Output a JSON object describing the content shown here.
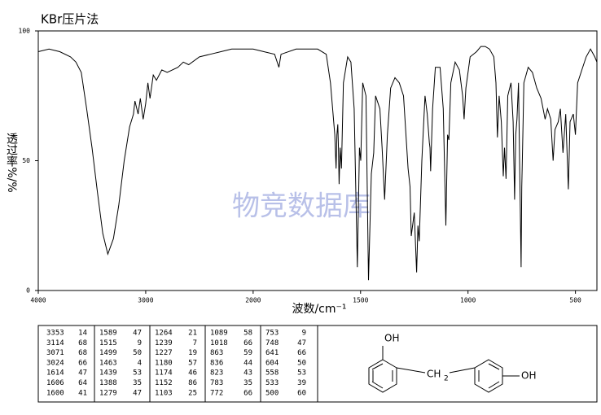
{
  "chart_data": {
    "type": "line",
    "title": "KBr压片法",
    "x_label": "波数/cm⁻¹",
    "y_label": "透过率%/%",
    "annotation": "物竞数据库",
    "xlim": [
      4000,
      400
    ],
    "xticks": [
      4000,
      3000,
      2000,
      1500,
      1000,
      500
    ],
    "ylim": [
      0,
      100
    ],
    "yticks": [
      0,
      50,
      100
    ],
    "color": "#000000",
    "x": [
      4000,
      3900,
      3800,
      3700,
      3650,
      3600,
      3550,
      3500,
      3450,
      3400,
      3353,
      3300,
      3250,
      3200,
      3150,
      3114,
      3100,
      3071,
      3050,
      3024,
      3000,
      2980,
      2960,
      2930,
      2900,
      2850,
      2800,
      2700,
      2650,
      2600,
      2500,
      2400,
      2300,
      2200,
      2100,
      2000,
      1950,
      1900,
      1880,
      1870,
      1800,
      1750,
      1700,
      1660,
      1640,
      1620,
      1614,
      1610,
      1606,
      1603,
      1600,
      1595,
      1589,
      1580,
      1560,
      1545,
      1530,
      1515,
      1505,
      1499,
      1490,
      1475,
      1463,
      1450,
      1439,
      1430,
      1410,
      1400,
      1388,
      1375,
      1360,
      1340,
      1320,
      1300,
      1279,
      1270,
      1264,
      1250,
      1239,
      1233,
      1227,
      1215,
      1200,
      1190,
      1180,
      1177,
      1174,
      1165,
      1152,
      1130,
      1115,
      1103,
      1095,
      1089,
      1080,
      1060,
      1040,
      1025,
      1018,
      1010,
      990,
      960,
      940,
      920,
      900,
      880,
      870,
      863,
      855,
      845,
      836,
      830,
      823,
      815,
      800,
      790,
      783,
      778,
      772,
      765,
      758,
      753,
      750,
      748,
      740,
      720,
      700,
      680,
      660,
      641,
      630,
      615,
      604,
      595,
      580,
      570,
      558,
      545,
      533,
      525,
      510,
      500,
      490,
      470,
      450,
      430,
      410,
      400
    ],
    "values": [
      92,
      93,
      92,
      90,
      88,
      84,
      70,
      55,
      38,
      22,
      14,
      20,
      33,
      50,
      63,
      68,
      73,
      68,
      74,
      66,
      72,
      80,
      74,
      83,
      81,
      85,
      84,
      86,
      88,
      87,
      90,
      91,
      92,
      93,
      93,
      93,
      92,
      91,
      86,
      91,
      93,
      93,
      93,
      91,
      80,
      60,
      47,
      60,
      64,
      55,
      41,
      55,
      47,
      80,
      90,
      88,
      70,
      9,
      55,
      50,
      80,
      75,
      4,
      45,
      53,
      75,
      70,
      55,
      35,
      60,
      78,
      82,
      80,
      75,
      47,
      40,
      21,
      30,
      7,
      25,
      19,
      50,
      75,
      68,
      57,
      55,
      46,
      70,
      86,
      86,
      70,
      25,
      60,
      58,
      80,
      88,
      85,
      75,
      66,
      78,
      90,
      92,
      94,
      94,
      93,
      90,
      80,
      59,
      75,
      65,
      44,
      55,
      43,
      75,
      80,
      65,
      35,
      60,
      66,
      80,
      40,
      9,
      40,
      47,
      80,
      86,
      84,
      78,
      74,
      66,
      70,
      66,
      50,
      62,
      65,
      70,
      53,
      68,
      39,
      65,
      68,
      60,
      80,
      85,
      90,
      93,
      90,
      88
    ]
  },
  "peak_table": [
    [
      [
        3353,
        14
      ],
      [
        3114,
        68
      ],
      [
        3071,
        68
      ],
      [
        3024,
        66
      ],
      [
        1614,
        47
      ],
      [
        1606,
        64
      ],
      [
        1600,
        41
      ]
    ],
    [
      [
        1589,
        47
      ],
      [
        1515,
        9
      ],
      [
        1499,
        50
      ],
      [
        1463,
        4
      ],
      [
        1439,
        53
      ],
      [
        1388,
        35
      ],
      [
        1279,
        47
      ]
    ],
    [
      [
        1264,
        21
      ],
      [
        1239,
        7
      ],
      [
        1227,
        19
      ],
      [
        1180,
        57
      ],
      [
        1174,
        46
      ],
      [
        1152,
        86
      ],
      [
        1103,
        25
      ]
    ],
    [
      [
        1089,
        58
      ],
      [
        1018,
        66
      ],
      [
        863,
        59
      ],
      [
        836,
        44
      ],
      [
        823,
        43
      ],
      [
        783,
        35
      ],
      [
        772,
        66
      ]
    ],
    [
      [
        753,
        9
      ],
      [
        748,
        47
      ],
      [
        641,
        66
      ],
      [
        604,
        50
      ],
      [
        558,
        53
      ],
      [
        533,
        39
      ],
      [
        500,
        60
      ]
    ]
  ],
  "structure": {
    "labels": [
      "OH",
      "CH",
      "2",
      "OH"
    ]
  }
}
